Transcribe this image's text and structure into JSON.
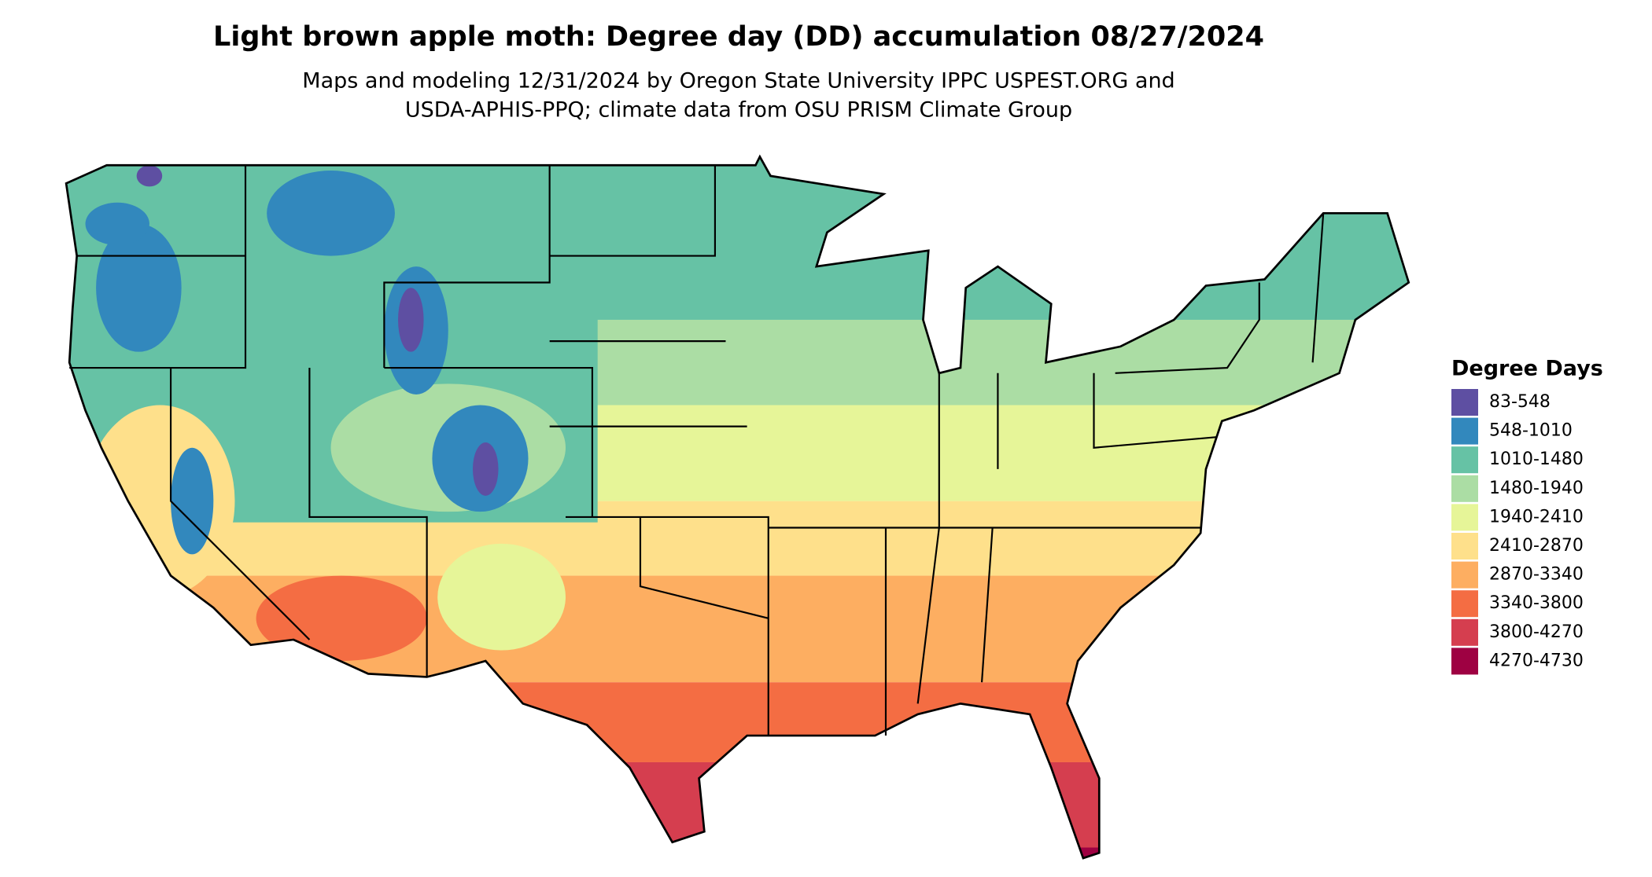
{
  "title": "Light brown apple moth: Degree day (DD) accumulation 08/27/2024",
  "subtitle": [
    "Maps and modeling 12/31/2024 by Oregon State University IPPC USPEST.ORG and",
    "USDA-APHIS-PPQ; climate data from OSU PRISM Climate Group"
  ],
  "legend": {
    "title": "Degree Days",
    "items": [
      {
        "label": "83-548",
        "color": "#5e4fa2"
      },
      {
        "label": "548-1010",
        "color": "#3288bd"
      },
      {
        "label": "1010-1480",
        "color": "#66c2a5"
      },
      {
        "label": "1480-1940",
        "color": "#abdda4"
      },
      {
        "label": "1940-2410",
        "color": "#e6f598"
      },
      {
        "label": "2410-2870",
        "color": "#fee08b"
      },
      {
        "label": "2870-3340",
        "color": "#fdae61"
      },
      {
        "label": "3340-3800",
        "color": "#f46d43"
      },
      {
        "label": "3800-4270",
        "color": "#d53e4f"
      },
      {
        "label": "4270-4730",
        "color": "#9e0142"
      }
    ]
  }
}
